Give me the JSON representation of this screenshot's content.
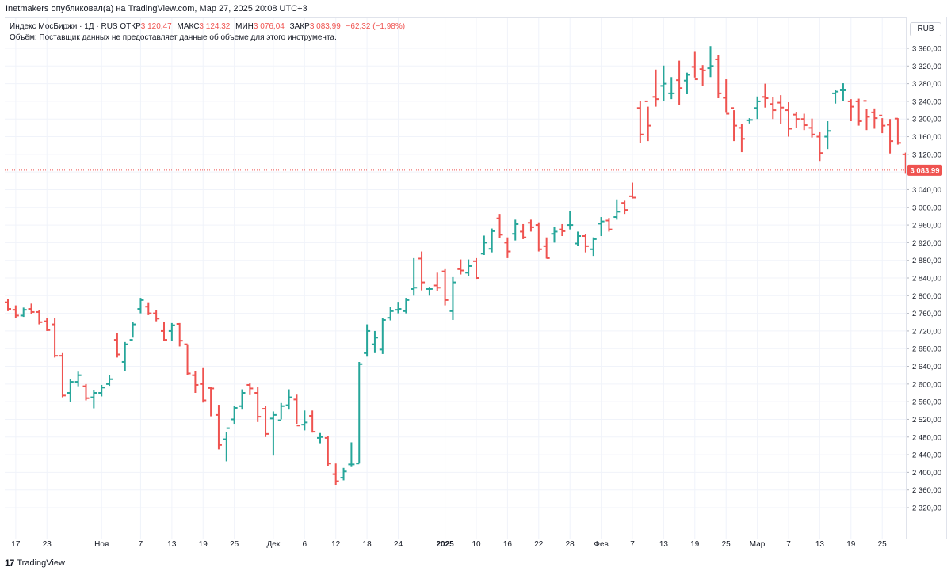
{
  "header": {
    "published": "Inetmakers опубликовал(а) на TradingView.com, Мар 27, 2025 20:08 UTC+3"
  },
  "legend": {
    "symbol": "Индекс МосБиржи · 1Д · RUS",
    "open_label": "ОТКР",
    "open_value": "3 120,47",
    "high_label": "МАКС",
    "high_value": "3 124,32",
    "low_label": "МИН",
    "low_value": "3 076,04",
    "close_label": "ЗАКР",
    "close_value": "3 083,99",
    "change": "−62,32 (−1,98%)",
    "volume_note": "Объём: Поставщик данных не предоставляет данные об объеме для этого инструмента."
  },
  "axis": {
    "currency": "RUB",
    "price_label": "3 083,99"
  },
  "footer": {
    "logo_text": "TradingView"
  },
  "colors": {
    "up": "#26a69a",
    "down": "#ef5350",
    "grid": "#f0f3fa",
    "price_line": "#ef5350"
  },
  "chart_data": {
    "type": "ohlc",
    "ylim": [
      2320,
      3380
    ],
    "y_ticks": [
      2320,
      2360,
      2400,
      2440,
      2480,
      2520,
      2560,
      2600,
      2640,
      2680,
      2720,
      2760,
      2800,
      2840,
      2880,
      2920,
      2960,
      3000,
      3040,
      3080,
      3120,
      3160,
      3200,
      3240,
      3280,
      3320,
      3360
    ],
    "y_tick_labels": [
      "2 320,00",
      "2 360,00",
      "2 400,00",
      "2 440,00",
      "2 480,00",
      "2 520,00",
      "2 560,00",
      "2 600,00",
      "2 640,00",
      "2 680,00",
      "2 720,00",
      "2 760,00",
      "2 800,00",
      "2 840,00",
      "2 880,00",
      "2 920,00",
      "2 960,00",
      "3 000,00",
      "3 040,00",
      "3 080,00",
      "3 120,00",
      "3 160,00",
      "3 200,00",
      "3 240,00",
      "3 280,00",
      "3 320,00",
      "3 360,00"
    ],
    "x_ticks": [
      {
        "label": "17",
        "bar": 1,
        "bold": false
      },
      {
        "label": "23",
        "bar": 5,
        "bold": false
      },
      {
        "label": "Ноя",
        "bar": 12,
        "bold": false
      },
      {
        "label": "7",
        "bar": 17,
        "bold": false
      },
      {
        "label": "13",
        "bar": 21,
        "bold": false
      },
      {
        "label": "19",
        "bar": 25,
        "bold": false
      },
      {
        "label": "25",
        "bar": 29,
        "bold": false
      },
      {
        "label": "Дек",
        "bar": 34,
        "bold": false
      },
      {
        "label": "6",
        "bar": 38,
        "bold": false
      },
      {
        "label": "12",
        "bar": 42,
        "bold": false
      },
      {
        "label": "18",
        "bar": 46,
        "bold": false
      },
      {
        "label": "24",
        "bar": 50,
        "bold": false
      },
      {
        "label": "2025",
        "bar": 56,
        "bold": true
      },
      {
        "label": "10",
        "bar": 60,
        "bold": false
      },
      {
        "label": "16",
        "bar": 64,
        "bold": false
      },
      {
        "label": "22",
        "bar": 68,
        "bold": false
      },
      {
        "label": "28",
        "bar": 72,
        "bold": false
      },
      {
        "label": "Фев",
        "bar": 76,
        "bold": false
      },
      {
        "label": "7",
        "bar": 80,
        "bold": false
      },
      {
        "label": "13",
        "bar": 84,
        "bold": false
      },
      {
        "label": "19",
        "bar": 88,
        "bold": false
      },
      {
        "label": "25",
        "bar": 92,
        "bold": false
      },
      {
        "label": "Мар",
        "bar": 96,
        "bold": false
      },
      {
        "label": "7",
        "bar": 100,
        "bold": false
      },
      {
        "label": "13",
        "bar": 104,
        "bold": false
      },
      {
        "label": "19",
        "bar": 108,
        "bold": false
      },
      {
        "label": "25",
        "bar": 112,
        "bold": false
      }
    ],
    "last_price": 3083.99,
    "bars": [
      [
        2785,
        2792,
        2765,
        2770
      ],
      [
        2768,
        2778,
        2750,
        2755
      ],
      [
        2755,
        2773,
        2752,
        2768
      ],
      [
        2770,
        2782,
        2758,
        2763
      ],
      [
        2763,
        2768,
        2735,
        2740
      ],
      [
        2742,
        2750,
        2720,
        2722
      ],
      [
        2735,
        2750,
        2660,
        2664
      ],
      [
        2664,
        2670,
        2570,
        2574
      ],
      [
        2580,
        2612,
        2560,
        2605
      ],
      [
        2605,
        2628,
        2595,
        2620
      ],
      [
        2595,
        2600,
        2563,
        2568
      ],
      [
        2570,
        2586,
        2545,
        2580
      ],
      [
        2580,
        2598,
        2572,
        2592
      ],
      [
        2600,
        2620,
        2596,
        2611
      ],
      [
        2700,
        2715,
        2660,
        2667
      ],
      [
        2650,
        2695,
        2630,
        2690
      ],
      [
        2700,
        2740,
        2705,
        2735
      ],
      [
        2770,
        2795,
        2760,
        2790
      ],
      [
        2775,
        2785,
        2756,
        2760
      ],
      [
        2760,
        2768,
        2742,
        2748
      ],
      [
        2720,
        2740,
        2697,
        2700
      ],
      [
        2720,
        2738,
        2697,
        2733
      ],
      [
        2736,
        2738,
        2685,
        2698
      ],
      [
        2690,
        2690,
        2620,
        2624
      ],
      [
        2620,
        2630,
        2580,
        2598
      ],
      [
        2600,
        2636,
        2558,
        2563
      ],
      [
        2591,
        2594,
        2527,
        2590
      ],
      [
        2530,
        2553,
        2452,
        2462
      ],
      [
        2475,
        2491,
        2425,
        2500
      ],
      [
        2520,
        2550,
        2510,
        2546
      ],
      [
        2550,
        2588,
        2542,
        2580
      ],
      [
        2598,
        2603,
        2575,
        2590
      ],
      [
        2580,
        2593,
        2514,
        2526
      ],
      [
        2544,
        2550,
        2480,
        2487
      ],
      [
        2522,
        2538,
        2438,
        2530
      ],
      [
        2518,
        2557,
        2520,
        2550
      ],
      [
        2552,
        2588,
        2542,
        2570
      ],
      [
        2565,
        2576,
        2510,
        2506
      ],
      [
        2508,
        2540,
        2495,
        2513
      ],
      [
        2528,
        2540,
        2490,
        2492
      ],
      [
        2478,
        2489,
        2466,
        2480
      ],
      [
        2478,
        2482,
        2415,
        2420
      ],
      [
        2396,
        2420,
        2372,
        2380
      ],
      [
        2388,
        2410,
        2382,
        2402
      ],
      [
        2418,
        2468,
        2412,
        2418
      ],
      [
        2420,
        2650,
        2420,
        2645
      ],
      [
        2670,
        2735,
        2662,
        2720
      ],
      [
        2690,
        2720,
        2670,
        2705
      ],
      [
        2678,
        2750,
        2668,
        2745
      ],
      [
        2750,
        2774,
        2744,
        2765
      ],
      [
        2768,
        2786,
        2760,
        2770
      ],
      [
        2765,
        2795,
        2760,
        2790
      ],
      [
        2815,
        2885,
        2800,
        2818
      ],
      [
        2884,
        2900,
        2812,
        2830
      ],
      [
        2815,
        2820,
        2800,
        2815
      ],
      [
        2823,
        2852,
        2810,
        2818
      ],
      [
        2855,
        2860,
        2778,
        2790
      ],
      [
        2765,
        2842,
        2745,
        2830
      ],
      [
        2860,
        2882,
        2848,
        2857
      ],
      [
        2852,
        2882,
        2845,
        2867
      ],
      [
        2878,
        2885,
        2838,
        2840
      ],
      [
        2895,
        2936,
        2892,
        2920
      ],
      [
        2906,
        2952,
        2898,
        2946
      ],
      [
        2975,
        2985,
        2930,
        2938
      ],
      [
        2920,
        2932,
        2885,
        2900
      ],
      [
        2940,
        2972,
        2925,
        2962
      ],
      [
        2945,
        2962,
        2928,
        2932
      ],
      [
        2965,
        2972,
        2945,
        2955
      ],
      [
        2960,
        2966,
        2900,
        2905
      ],
      [
        2912,
        2932,
        2884,
        2885
      ],
      [
        2940,
        2955,
        2920,
        2945
      ],
      [
        2950,
        2962,
        2935,
        2946
      ],
      [
        2960,
        2992,
        2950,
        2960
      ],
      [
        2918,
        2945,
        2912,
        2935
      ],
      [
        2935,
        2940,
        2898,
        2912
      ],
      [
        2905,
        2932,
        2890,
        2928
      ],
      [
        2963,
        2978,
        2935,
        2968
      ],
      [
        2970,
        2976,
        2945,
        2950
      ],
      [
        2978,
        3018,
        2972,
        2990
      ],
      [
        3010,
        3015,
        2985,
        2994
      ],
      [
        3025,
        3056,
        3020,
        3022
      ],
      [
        3225,
        3240,
        3145,
        3165
      ],
      [
        3240,
        3228,
        3150,
        3185
      ],
      [
        3250,
        3312,
        3228,
        3245
      ],
      [
        3275,
        3321,
        3240,
        3280
      ],
      [
        3258,
        3295,
        3245,
        3258
      ],
      [
        3288,
        3332,
        3232,
        3270
      ],
      [
        3287,
        3305,
        3256,
        3300
      ],
      [
        3318,
        3352,
        3294,
        3290
      ],
      [
        3313,
        3322,
        3275,
        3310
      ],
      [
        3315,
        3365,
        3295,
        3320
      ],
      [
        3335,
        3345,
        3247,
        3258
      ],
      [
        3248,
        3290,
        3214,
        3212
      ],
      [
        3225,
        3220,
        3150,
        3185
      ],
      [
        3180,
        3188,
        3125,
        3155
      ],
      [
        3197,
        3202,
        3190,
        3198
      ],
      [
        3225,
        3251,
        3200,
        3240
      ],
      [
        3250,
        3280,
        3226,
        3247
      ],
      [
        3234,
        3250,
        3200,
        3220
      ],
      [
        3237,
        3254,
        3188,
        3226
      ],
      [
        3220,
        3238,
        3160,
        3178
      ],
      [
        3210,
        3215,
        3180,
        3200
      ],
      [
        3200,
        3212,
        3175,
        3186
      ],
      [
        3180,
        3201,
        3158,
        3165
      ],
      [
        3160,
        3170,
        3105,
        3123
      ],
      [
        3160,
        3195,
        3132,
        3173
      ],
      [
        3258,
        3265,
        3235,
        3262
      ],
      [
        3265,
        3281,
        3240,
        3265
      ],
      [
        3240,
        3245,
        3195,
        3228
      ],
      [
        3240,
        3246,
        3185,
        3195
      ],
      [
        3241,
        3222,
        3175,
        3205
      ],
      [
        3215,
        3224,
        3178,
        3202
      ],
      [
        3208,
        3202,
        3168,
        3185
      ],
      [
        3187,
        3200,
        3122,
        3150
      ],
      [
        3201,
        3202,
        3142,
        3146
      ],
      [
        3120,
        3124,
        3076,
        3084
      ]
    ]
  }
}
